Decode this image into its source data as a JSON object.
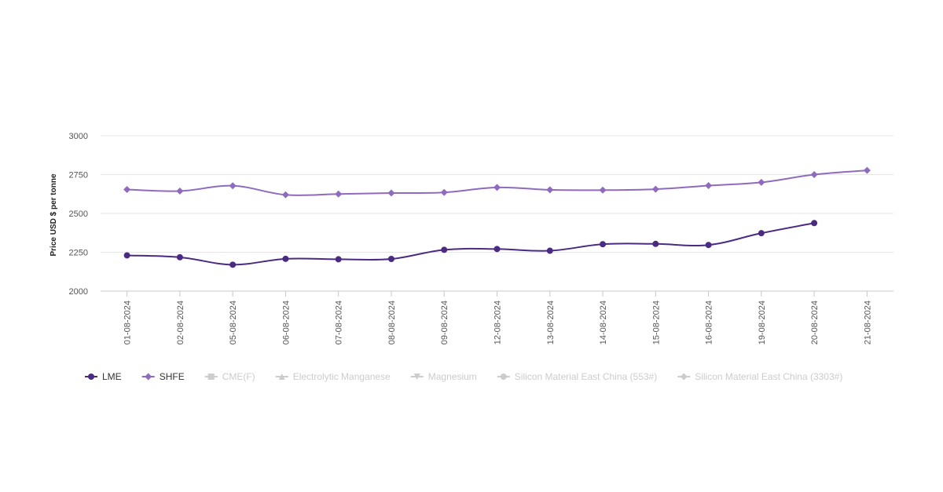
{
  "chart_data": {
    "type": "line",
    "ylabel": "Price USD $ per tonne",
    "xlabel": "",
    "ylim": [
      2000,
      3000
    ],
    "yticks": [
      2000,
      2250,
      2500,
      2750,
      3000
    ],
    "grid": true,
    "legend_position": "bottom-left",
    "categories": [
      "01-08-2024",
      "02-08-2024",
      "05-08-2024",
      "06-08-2024",
      "07-08-2024",
      "08-08-2024",
      "09-08-2024",
      "12-08-2024",
      "13-08-2024",
      "14-08-2024",
      "15-08-2024",
      "16-08-2024",
      "19-08-2024",
      "20-08-2024",
      "21-08-2024"
    ],
    "series": [
      {
        "name": "LME",
        "color": "#4b2a82",
        "marker": "circle",
        "values": [
          2230,
          2218,
          2170,
          2208,
          2205,
          2207,
          2266,
          2271,
          2260,
          2302,
          2304,
          2297,
          2373,
          2438,
          null
        ]
      },
      {
        "name": "SHFE",
        "color": "#8e6bbf",
        "marker": "diamond",
        "values": [
          2654,
          2644,
          2678,
          2620,
          2625,
          2631,
          2635,
          2667,
          2652,
          2650,
          2656,
          2679,
          2700,
          2750,
          2777
        ]
      }
    ],
    "legend": [
      {
        "name": "LME",
        "symbol": "circle",
        "color": "#4b2a82",
        "active": true
      },
      {
        "name": "SHFE",
        "symbol": "diamond",
        "color": "#8e6bbf",
        "active": true
      },
      {
        "name": "CME(F)",
        "symbol": "square",
        "color": "#cccccc",
        "active": false
      },
      {
        "name": "Electrolytic Manganese",
        "symbol": "triangle",
        "color": "#cccccc",
        "active": false
      },
      {
        "name": "Magnesium",
        "symbol": "triangle-down",
        "color": "#cccccc",
        "active": false
      },
      {
        "name": "Silicon Material East China (553#)",
        "symbol": "circle",
        "color": "#cccccc",
        "active": false
      },
      {
        "name": "Silicon Material East China (3303#)",
        "symbol": "diamond",
        "color": "#cccccc",
        "active": false
      }
    ]
  }
}
